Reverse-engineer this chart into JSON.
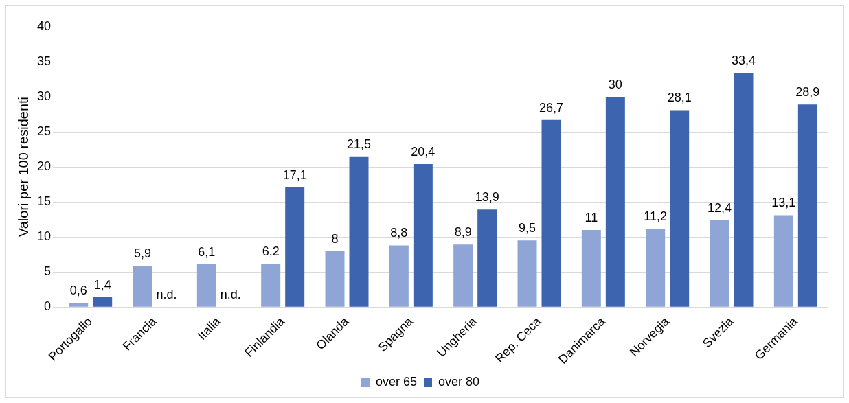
{
  "chart_data": {
    "type": "bar",
    "ylabel": "Valori per 100 residenti",
    "categories": [
      "Portogallo",
      "Francia",
      "Italia",
      "Finlandia",
      "Olanda",
      "Spagna",
      "Ungheria",
      "Rep. Ceca",
      "Danimarca",
      "Norvegia",
      "Svezia",
      "Germania"
    ],
    "series": [
      {
        "name": "over 65",
        "color": "#8fa5d6",
        "values": [
          0.6,
          5.9,
          6.1,
          6.2,
          8,
          8.8,
          8.9,
          9.5,
          11,
          11.2,
          12.4,
          13.1
        ],
        "value_labels": [
          "0,6",
          "5,9",
          "6,1",
          "6,2",
          "8",
          "8,8",
          "8,9",
          "9,5",
          "11",
          "11,2",
          "12,4",
          "13,1"
        ]
      },
      {
        "name": "over 80",
        "color": "#3d64ae",
        "values": [
          1.4,
          null,
          null,
          17.1,
          21.5,
          20.4,
          13.9,
          26.7,
          30,
          28.1,
          33.4,
          28.9
        ],
        "value_labels": [
          "1,4",
          "n.d.",
          "n.d.",
          "17,1",
          "21,5",
          "20,4",
          "13,9",
          "26,7",
          "30",
          "28,1",
          "33,4",
          "28,9"
        ]
      }
    ],
    "ylim": [
      0,
      40
    ],
    "yticks": [
      0,
      5,
      10,
      15,
      20,
      25,
      30,
      35,
      40
    ],
    "grid": "y",
    "legend": "bottom"
  }
}
